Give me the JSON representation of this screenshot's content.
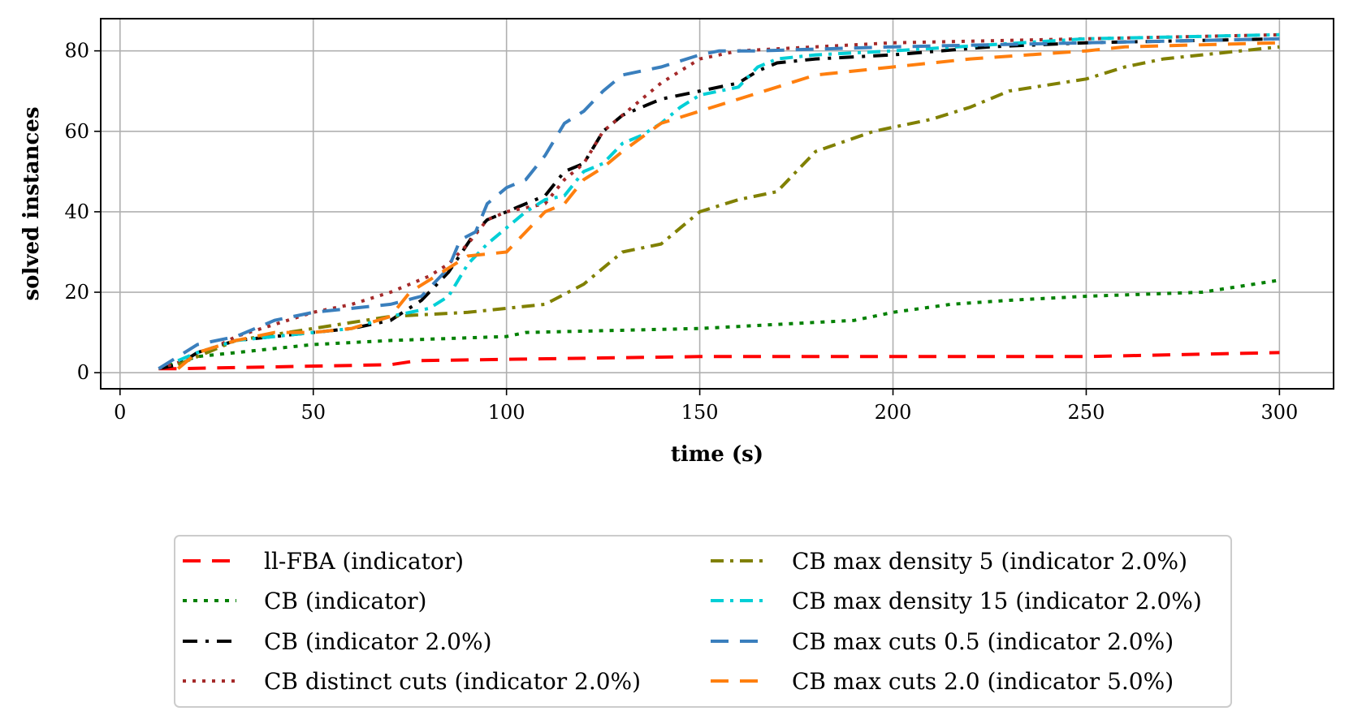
{
  "chart_data": {
    "type": "line",
    "title": "",
    "xlabel": "time (s)",
    "ylabel": "solved instances",
    "xlim": [
      -5,
      314
    ],
    "ylim": [
      -4,
      88
    ],
    "xticks": [
      0,
      50,
      100,
      150,
      200,
      250,
      300
    ],
    "yticks": [
      0,
      20,
      40,
      60,
      80
    ],
    "grid": true,
    "legend_position": "bottom-center",
    "series": [
      {
        "name": "ll-FBA (indicator)",
        "color": "#ff0000",
        "dash": "22,14",
        "x": [
          10,
          15,
          70,
          77,
          150,
          200,
          250,
          300
        ],
        "y": [
          1,
          1,
          2,
          3,
          4,
          4,
          4,
          5
        ]
      },
      {
        "name": "CB (indicator)",
        "color": "#008000",
        "dash": "5,8",
        "x": [
          10,
          20,
          30,
          40,
          50,
          70,
          100,
          105,
          150,
          190,
          200,
          215,
          230,
          250,
          280,
          300
        ],
        "y": [
          1,
          4,
          5,
          6,
          7,
          8,
          9,
          10,
          11,
          13,
          15,
          17,
          18,
          19,
          20,
          23
        ]
      },
      {
        "name": "CB (indicator 2.0%)",
        "color": "#000000",
        "dash": "18,10,4,10",
        "x": [
          10,
          15,
          20,
          30,
          50,
          60,
          70,
          78,
          85,
          92,
          95,
          100,
          110,
          115,
          120,
          125,
          130,
          140,
          150,
          160,
          165,
          170,
          180,
          200,
          225,
          250,
          300
        ],
        "y": [
          1,
          2,
          5,
          8,
          10,
          11,
          13,
          18,
          25,
          35,
          38,
          40,
          44,
          50,
          52,
          60,
          64,
          68,
          70,
          72,
          75,
          77,
          78,
          79,
          81,
          82,
          83
        ]
      },
      {
        "name": "CB distinct cuts (indicator 2.0%)",
        "color": "#a52a2a",
        "dash": "4,8",
        "x": [
          10,
          20,
          30,
          40,
          50,
          60,
          70,
          80,
          85,
          90,
          95,
          100,
          110,
          115,
          120,
          125,
          130,
          140,
          150,
          160,
          180,
          200,
          250,
          300
        ],
        "y": [
          1,
          4,
          9,
          12,
          15,
          17,
          20,
          24,
          27,
          32,
          38,
          40,
          42,
          48,
          52,
          60,
          64,
          72,
          78,
          80,
          81,
          82,
          83,
          84
        ]
      },
      {
        "name": "CB max density 5 (indicator 2.0%)",
        "color": "#808000",
        "dash": "16,8,4,8",
        "x": [
          15,
          30,
          50,
          70,
          90,
          110,
          120,
          130,
          140,
          150,
          160,
          170,
          180,
          195,
          210,
          220,
          230,
          250,
          260,
          270,
          290,
          300
        ],
        "y": [
          2,
          8,
          11,
          14,
          15,
          17,
          22,
          30,
          32,
          40,
          43,
          45,
          55,
          60,
          63,
          66,
          70,
          73,
          76,
          78,
          80,
          81
        ]
      },
      {
        "name": "CB max density 15 (indicator 2.0%)",
        "color": "#00cfd6",
        "dash": "16,8,4,8",
        "x": [
          15,
          20,
          30,
          40,
          50,
          60,
          70,
          80,
          85,
          90,
          95,
          100,
          105,
          110,
          115,
          120,
          125,
          130,
          135,
          140,
          145,
          150,
          160,
          165,
          170,
          180,
          200,
          250,
          300
        ],
        "y": [
          3,
          5,
          8,
          9,
          10,
          11,
          14,
          16,
          19,
          27,
          32,
          36,
          40,
          43,
          44,
          50,
          52,
          57,
          59,
          62,
          66,
          69,
          71,
          76,
          78,
          79,
          80,
          83,
          84
        ]
      },
      {
        "name": "CB max cuts 0.5 (indicator 2.0%)",
        "color": "#3a7fbd",
        "dash": "22,14",
        "x": [
          10,
          20,
          30,
          40,
          50,
          60,
          70,
          78,
          85,
          88,
          92,
          95,
          100,
          105,
          110,
          115,
          120,
          125,
          130,
          140,
          150,
          155,
          165,
          200,
          250,
          300
        ],
        "y": [
          1,
          7,
          9,
          13,
          15,
          16,
          17,
          19,
          26,
          33,
          35,
          42,
          46,
          48,
          54,
          62,
          65,
          70,
          74,
          76,
          79,
          80,
          80,
          81,
          82,
          83
        ]
      },
      {
        "name": "CB max cuts 2.0 (indicator 5.0%)",
        "color": "#ff7f0e",
        "dash": "22,14",
        "x": [
          15,
          20,
          30,
          40,
          50,
          60,
          70,
          75,
          80,
          90,
          100,
          105,
          110,
          115,
          120,
          125,
          130,
          140,
          150,
          160,
          170,
          180,
          200,
          220,
          250,
          260,
          300
        ],
        "y": [
          1,
          5,
          8,
          10,
          10,
          11,
          14,
          20,
          23,
          29,
          30,
          35,
          40,
          42,
          48,
          51,
          55,
          62,
          65,
          68,
          71,
          74,
          76,
          78,
          80,
          81,
          82
        ]
      }
    ]
  }
}
